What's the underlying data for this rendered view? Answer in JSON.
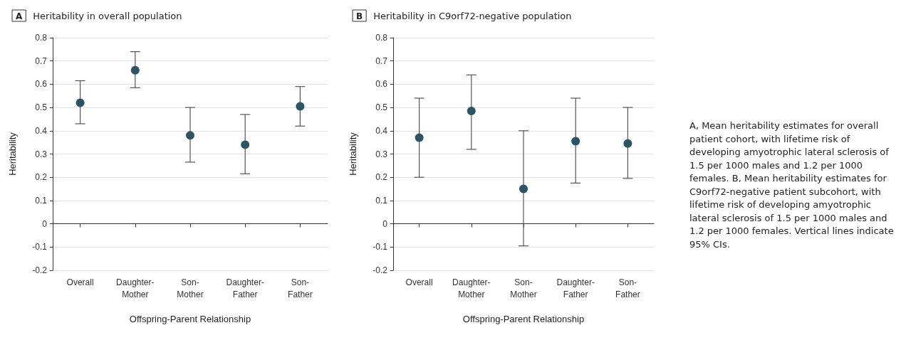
{
  "chart_data": [
    {
      "type": "scatter",
      "title": "A Heritability in overall population",
      "xlabel": "Offspring-Parent Relationship",
      "ylabel": "Heritability",
      "categories": [
        "Overall",
        "Daughter-Mother",
        "Son-Mother",
        "Daughter-Father",
        "Son-Father"
      ],
      "series": [
        {
          "color": "#2b5464",
          "values": [
            0.52,
            0.66,
            0.38,
            0.34,
            0.505
          ],
          "errors": [
            [
              0.43,
              0.615
            ],
            [
              0.585,
              0.74
            ],
            [
              0.265,
              0.5
            ],
            [
              0.215,
              0.47
            ],
            [
              0.42,
              0.59
            ]
          ]
        }
      ],
      "ylim": [
        -0.2,
        0.8
      ],
      "yticks": [
        -0.2,
        -0.1,
        0,
        0.1,
        0.2,
        0.3,
        0.4,
        0.5,
        0.6,
        0.7,
        0.8
      ],
      "grid": "y",
      "marker": "circle"
    },
    {
      "type": "scatter",
      "title": "B Heritability in C9orf72-negative population",
      "xlabel": "Offspring-Parent Relationship",
      "ylabel": "Heritability",
      "categories": [
        "Overall",
        "Daughter-Mother",
        "Son-Mother",
        "Daughter-Father",
        "Son-Father"
      ],
      "series": [
        {
          "color": "#2b5464",
          "values": [
            0.37,
            0.485,
            0.15,
            0.355,
            0.345
          ],
          "errors": [
            [
              0.2,
              0.54
            ],
            [
              0.32,
              0.64
            ],
            [
              -0.095,
              0.4
            ],
            [
              0.175,
              0.54
            ],
            [
              0.195,
              0.5
            ]
          ]
        }
      ],
      "ylim": [
        -0.2,
        0.8
      ],
      "yticks": [
        -0.2,
        -0.1,
        0,
        0.1,
        0.2,
        0.3,
        0.4,
        0.5,
        0.6,
        0.7,
        0.8
      ],
      "grid": "y",
      "marker": "circle",
      "annotations": [
        "A, Mean heritability estimates for overall patient cohort, with lifetime risk of developing amyotrophic lateral sclerosis of 1.5 per 1000 males and 1.2 per 1000 females. B, Mean heritability estimates for C9orf72-negative patient subcohort, with lifetime risk of developing amyotrophic lateral sclerosis of 1.5 per 1000 males and 1.2 per 1000 females. Vertical lines indicate 95% CIs."
      ]
    }
  ]
}
